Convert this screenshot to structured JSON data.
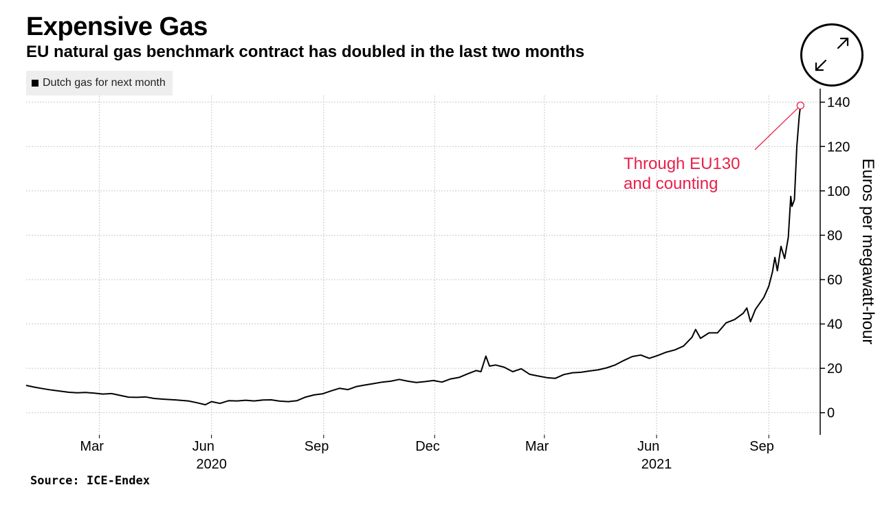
{
  "header": {
    "title": "Expensive Gas",
    "subtitle": "EU natural gas benchmark contract has doubled in the last two months"
  },
  "legend": {
    "label": "Dutch gas for next month"
  },
  "footer": {
    "source": "Source: ICE-Endex"
  },
  "controls": {
    "expand_icon": "expand-icon"
  },
  "chart_data": {
    "type": "line",
    "title": "Expensive Gas",
    "subtitle": "EU natural gas benchmark contract has doubled in the last two months",
    "ylabel": "Euros per megawatt-hour",
    "xlabel": "",
    "ylim": [
      -10,
      143
    ],
    "yticks": [
      0,
      20,
      40,
      60,
      80,
      100,
      120,
      140
    ],
    "grid": true,
    "legend_position": "top-left",
    "x_tick_labels": [
      "Mar",
      "Jun",
      "Sep",
      "Dec",
      "Mar",
      "Jun",
      "Sep"
    ],
    "x_tick_dates": [
      "2020-03-01",
      "2020-06-01",
      "2020-09-01",
      "2020-12-01",
      "2021-03-01",
      "2021-06-01",
      "2021-09-01"
    ],
    "year_labels": [
      {
        "label": "2020",
        "date": "2020-06-01"
      },
      {
        "label": "2021",
        "date": "2021-06-01"
      }
    ],
    "xlim": [
      "2020-01-01",
      "2021-10-03"
    ],
    "annotation": {
      "text_lines": [
        "Through EU130",
        "and counting"
      ],
      "date": "2021-09-27",
      "value": 138.5,
      "color": "#e8204a"
    },
    "series": [
      {
        "name": "Dutch gas for next month",
        "color": "#000000",
        "points": [
          [
            "2020-01-01",
            12.3
          ],
          [
            "2020-01-08",
            11.5
          ],
          [
            "2020-01-15",
            10.8
          ],
          [
            "2020-01-22",
            10.2
          ],
          [
            "2020-01-29",
            9.7
          ],
          [
            "2020-02-05",
            9.2
          ],
          [
            "2020-02-12",
            9.0
          ],
          [
            "2020-02-19",
            9.1
          ],
          [
            "2020-02-26",
            8.8
          ],
          [
            "2020-03-04",
            8.4
          ],
          [
            "2020-03-11",
            8.6
          ],
          [
            "2020-03-18",
            7.8
          ],
          [
            "2020-03-25",
            7.0
          ],
          [
            "2020-04-01",
            6.9
          ],
          [
            "2020-04-08",
            7.1
          ],
          [
            "2020-04-15",
            6.4
          ],
          [
            "2020-04-22",
            6.1
          ],
          [
            "2020-04-29",
            5.9
          ],
          [
            "2020-05-06",
            5.6
          ],
          [
            "2020-05-13",
            5.3
          ],
          [
            "2020-05-20",
            4.5
          ],
          [
            "2020-05-27",
            3.6
          ],
          [
            "2020-06-01",
            5.0
          ],
          [
            "2020-06-08",
            4.2
          ],
          [
            "2020-06-15",
            5.4
          ],
          [
            "2020-06-22",
            5.3
          ],
          [
            "2020-06-29",
            5.6
          ],
          [
            "2020-07-06",
            5.3
          ],
          [
            "2020-07-13",
            5.7
          ],
          [
            "2020-07-20",
            5.8
          ],
          [
            "2020-07-27",
            5.2
          ],
          [
            "2020-08-03",
            5.0
          ],
          [
            "2020-08-10",
            5.4
          ],
          [
            "2020-08-17",
            7.0
          ],
          [
            "2020-08-24",
            8.0
          ],
          [
            "2020-08-31",
            8.5
          ],
          [
            "2020-09-07",
            9.8
          ],
          [
            "2020-09-14",
            11.0
          ],
          [
            "2020-09-21",
            10.4
          ],
          [
            "2020-09-28",
            11.8
          ],
          [
            "2020-10-05",
            12.5
          ],
          [
            "2020-10-12",
            13.1
          ],
          [
            "2020-10-19",
            13.8
          ],
          [
            "2020-10-26",
            14.2
          ],
          [
            "2020-11-02",
            15.0
          ],
          [
            "2020-11-09",
            14.2
          ],
          [
            "2020-11-16",
            13.6
          ],
          [
            "2020-11-23",
            14.0
          ],
          [
            "2020-11-30",
            14.5
          ],
          [
            "2020-12-07",
            13.8
          ],
          [
            "2020-12-14",
            15.2
          ],
          [
            "2020-12-21",
            15.9
          ],
          [
            "2020-12-28",
            17.5
          ],
          [
            "2021-01-04",
            19.0
          ],
          [
            "2021-01-08",
            18.5
          ],
          [
            "2021-01-12",
            25.5
          ],
          [
            "2021-01-15",
            21.0
          ],
          [
            "2021-01-20",
            21.5
          ],
          [
            "2021-01-27",
            20.5
          ],
          [
            "2021-02-03",
            18.5
          ],
          [
            "2021-02-10",
            19.8
          ],
          [
            "2021-02-17",
            17.3
          ],
          [
            "2021-02-24",
            16.5
          ],
          [
            "2021-03-03",
            15.8
          ],
          [
            "2021-03-10",
            15.5
          ],
          [
            "2021-03-17",
            17.2
          ],
          [
            "2021-03-24",
            18.0
          ],
          [
            "2021-03-31",
            18.2
          ],
          [
            "2021-04-07",
            18.8
          ],
          [
            "2021-04-14",
            19.3
          ],
          [
            "2021-04-21",
            20.2
          ],
          [
            "2021-04-28",
            21.5
          ],
          [
            "2021-05-05",
            23.5
          ],
          [
            "2021-05-12",
            25.3
          ],
          [
            "2021-05-19",
            26.0
          ],
          [
            "2021-05-26",
            24.5
          ],
          [
            "2021-06-02",
            25.8
          ],
          [
            "2021-06-09",
            27.3
          ],
          [
            "2021-06-16",
            28.3
          ],
          [
            "2021-06-23",
            30.0
          ],
          [
            "2021-06-30",
            34.0
          ],
          [
            "2021-07-03",
            37.5
          ],
          [
            "2021-07-07",
            33.5
          ],
          [
            "2021-07-14",
            36.0
          ],
          [
            "2021-07-21",
            36.0
          ],
          [
            "2021-07-28",
            40.5
          ],
          [
            "2021-08-04",
            42.0
          ],
          [
            "2021-08-11",
            44.8
          ],
          [
            "2021-08-14",
            47.2
          ],
          [
            "2021-08-17",
            41.0
          ],
          [
            "2021-08-21",
            46.5
          ],
          [
            "2021-08-28",
            52.0
          ],
          [
            "2021-09-01",
            57.0
          ],
          [
            "2021-09-04",
            63.5
          ],
          [
            "2021-09-06",
            70.0
          ],
          [
            "2021-09-08",
            64.0
          ],
          [
            "2021-09-11",
            75.0
          ],
          [
            "2021-09-14",
            69.5
          ],
          [
            "2021-09-17",
            79.0
          ],
          [
            "2021-09-19",
            97.5
          ],
          [
            "2021-09-20",
            93.0
          ],
          [
            "2021-09-22",
            96.0
          ],
          [
            "2021-09-24",
            120.0
          ],
          [
            "2021-09-26",
            134.0
          ],
          [
            "2021-09-27",
            138.5
          ]
        ]
      }
    ]
  }
}
